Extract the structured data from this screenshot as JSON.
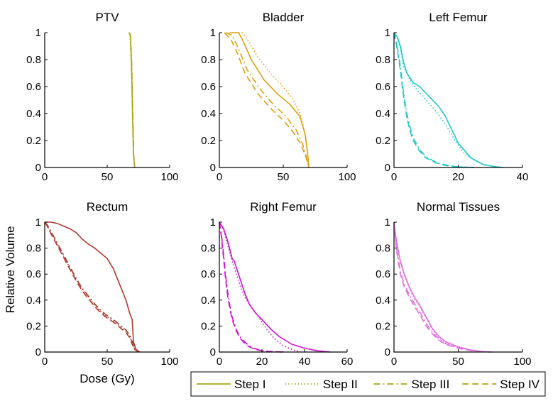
{
  "chart_data": [
    {
      "type": "line",
      "title": "PTV",
      "color": "#a8a818",
      "xlim": [
        0,
        100
      ],
      "ylim": [
        0,
        1
      ],
      "xticks": [
        0,
        50,
        100
      ],
      "yticks": [
        0,
        0.2,
        0.4,
        0.6,
        0.8,
        1
      ],
      "xtick_labels": [
        "0",
        "50",
        "100"
      ],
      "ytick_labels": [
        "0",
        "0.2",
        "0.4",
        "0.6",
        "0.8",
        "1"
      ],
      "series": [
        {
          "name": "Step I",
          "x": [
            67.5,
            68.5,
            69.5,
            70.3,
            71.0,
            72.0
          ],
          "y": [
            1,
            0.98,
            0.75,
            0.4,
            0.1,
            0
          ]
        },
        {
          "name": "Step II",
          "x": [
            67.3,
            68.3,
            69.3,
            70.2,
            70.9,
            71.8
          ],
          "y": [
            1,
            0.98,
            0.75,
            0.4,
            0.1,
            0
          ]
        },
        {
          "name": "Step III",
          "x": [
            67.8,
            68.7,
            69.7,
            70.5,
            71.2,
            72.1
          ],
          "y": [
            1,
            0.98,
            0.75,
            0.4,
            0.1,
            0
          ]
        },
        {
          "name": "Step IV",
          "x": [
            67.6,
            68.6,
            69.6,
            70.4,
            71.1,
            72.0
          ],
          "y": [
            1,
            0.98,
            0.75,
            0.4,
            0.1,
            0
          ]
        }
      ]
    },
    {
      "type": "line",
      "title": "Bladder",
      "color": "#e0a010",
      "xlim": [
        0,
        100
      ],
      "ylim": [
        0,
        1
      ],
      "xticks": [
        0,
        50,
        100
      ],
      "yticks": [
        0,
        0.2,
        0.4,
        0.6,
        0.8,
        1
      ],
      "xtick_labels": [
        "0",
        "50",
        "100"
      ],
      "ytick_labels": [
        "0",
        "0.2",
        "0.4",
        "0.6",
        "0.8",
        "1"
      ],
      "series": [
        {
          "name": "Step I",
          "x": [
            8,
            15,
            18,
            25,
            35,
            45,
            55,
            63,
            67,
            69,
            70
          ],
          "y": [
            1,
            1,
            0.95,
            0.8,
            0.65,
            0.55,
            0.47,
            0.38,
            0.25,
            0.12,
            0
          ]
        },
        {
          "name": "Step II",
          "x": [
            10,
            18,
            22,
            30,
            40,
            50,
            58,
            64,
            68,
            70
          ],
          "y": [
            1,
            1,
            0.95,
            0.82,
            0.7,
            0.6,
            0.5,
            0.38,
            0.2,
            0
          ]
        },
        {
          "name": "Step III",
          "x": [
            5,
            10,
            15,
            22,
            32,
            42,
            52,
            60,
            65,
            68,
            70
          ],
          "y": [
            1,
            0.98,
            0.88,
            0.72,
            0.58,
            0.47,
            0.38,
            0.28,
            0.18,
            0.08,
            0
          ]
        },
        {
          "name": "Step IV",
          "x": [
            4,
            9,
            14,
            20,
            30,
            40,
            50,
            58,
            64,
            68,
            70
          ],
          "y": [
            1,
            0.95,
            0.85,
            0.7,
            0.55,
            0.44,
            0.35,
            0.26,
            0.17,
            0.07,
            0
          ]
        }
      ]
    },
    {
      "type": "line",
      "title": "Left Femur",
      "color": "#20c8c8",
      "xlim": [
        0,
        40
      ],
      "ylim": [
        0,
        1
      ],
      "xticks": [
        0,
        20,
        40
      ],
      "yticks": [
        0,
        0.2,
        0.4,
        0.6,
        0.8,
        1
      ],
      "xtick_labels": [
        "0",
        "20",
        "40"
      ],
      "ytick_labels": [
        "0",
        "0.2",
        "0.4",
        "0.6",
        "0.8",
        "1"
      ],
      "series": [
        {
          "name": "Step I",
          "x": [
            0,
            1,
            2,
            3,
            4,
            6,
            8,
            10,
            12,
            14,
            16,
            18,
            20,
            24,
            28,
            32,
            34
          ],
          "y": [
            1,
            0.97,
            0.9,
            0.78,
            0.7,
            0.63,
            0.6,
            0.55,
            0.5,
            0.45,
            0.38,
            0.28,
            0.18,
            0.07,
            0.02,
            0.005,
            0
          ]
        },
        {
          "name": "Step II",
          "x": [
            0,
            1,
            2,
            3,
            5,
            7,
            10,
            13,
            16,
            19,
            22,
            26,
            30,
            33
          ],
          "y": [
            1,
            0.96,
            0.88,
            0.75,
            0.65,
            0.58,
            0.5,
            0.42,
            0.32,
            0.2,
            0.1,
            0.04,
            0.01,
            0
          ]
        },
        {
          "name": "Step III",
          "x": [
            0,
            1,
            2,
            3,
            4,
            5,
            6,
            8,
            10,
            13,
            16,
            20,
            25
          ],
          "y": [
            1,
            0.9,
            0.75,
            0.55,
            0.4,
            0.3,
            0.22,
            0.13,
            0.08,
            0.04,
            0.02,
            0.005,
            0
          ]
        },
        {
          "name": "Step IV",
          "x": [
            0,
            1,
            2,
            3,
            4,
            5,
            6,
            8,
            10,
            13,
            16,
            20,
            25
          ],
          "y": [
            1,
            0.88,
            0.72,
            0.52,
            0.37,
            0.27,
            0.2,
            0.12,
            0.07,
            0.035,
            0.015,
            0.004,
            0
          ]
        }
      ]
    },
    {
      "type": "line",
      "title": "Rectum",
      "color": "#b03a2e",
      "xlabel": "Dose (Gy)",
      "ylabel": "Relative Volume",
      "xlim": [
        0,
        100
      ],
      "ylim": [
        0,
        1
      ],
      "xticks": [
        0,
        50,
        100
      ],
      "yticks": [
        0,
        0.2,
        0.4,
        0.6,
        0.8,
        1
      ],
      "xtick_labels": [
        "0",
        "50",
        "100"
      ],
      "ytick_labels": [
        "0",
        "0.2",
        "0.4",
        "0.6",
        "0.8",
        "1"
      ],
      "series": [
        {
          "name": "Step I",
          "x": [
            0,
            5,
            10,
            15,
            20,
            25,
            30,
            35,
            40,
            45,
            50,
            55,
            60,
            65,
            68,
            70,
            71,
            73,
            76
          ],
          "y": [
            1,
            1,
            0.99,
            0.97,
            0.95,
            0.92,
            0.87,
            0.83,
            0.8,
            0.76,
            0.72,
            0.64,
            0.52,
            0.4,
            0.3,
            0.25,
            0.08,
            0.02,
            0
          ]
        },
        {
          "name": "Step II",
          "x": [
            0,
            2,
            5,
            10,
            15,
            20,
            25,
            30,
            35,
            40,
            45,
            50,
            55,
            60,
            65,
            68,
            70,
            72,
            75
          ],
          "y": [
            1,
            0.97,
            0.92,
            0.83,
            0.74,
            0.65,
            0.56,
            0.48,
            0.42,
            0.36,
            0.31,
            0.27,
            0.24,
            0.2,
            0.16,
            0.12,
            0.07,
            0.02,
            0
          ]
        },
        {
          "name": "Step III",
          "x": [
            0,
            2,
            5,
            10,
            15,
            20,
            25,
            30,
            35,
            40,
            45,
            50,
            55,
            60,
            65,
            68,
            70,
            72,
            75
          ],
          "y": [
            1,
            0.98,
            0.93,
            0.84,
            0.75,
            0.66,
            0.57,
            0.49,
            0.43,
            0.37,
            0.32,
            0.28,
            0.25,
            0.21,
            0.17,
            0.13,
            0.08,
            0.02,
            0
          ]
        },
        {
          "name": "Step IV",
          "x": [
            0,
            2,
            5,
            10,
            15,
            20,
            25,
            30,
            35,
            40,
            45,
            50,
            55,
            60,
            65,
            68,
            70,
            72,
            75
          ],
          "y": [
            1,
            0.97,
            0.91,
            0.82,
            0.73,
            0.64,
            0.55,
            0.47,
            0.41,
            0.35,
            0.3,
            0.26,
            0.23,
            0.19,
            0.15,
            0.11,
            0.06,
            0.02,
            0
          ]
        }
      ]
    },
    {
      "type": "line",
      "title": "Right Femur",
      "color": "#d010d0",
      "xlim": [
        0,
        60
      ],
      "ylim": [
        0,
        1
      ],
      "xticks": [
        0,
        20,
        40,
        60
      ],
      "yticks": [
        0,
        0.2,
        0.4,
        0.6,
        0.8,
        1
      ],
      "xtick_labels": [
        "0",
        "20",
        "40",
        "60"
      ],
      "ytick_labels": [
        "0",
        "0.2",
        "0.4",
        "0.6",
        "0.8",
        "1"
      ],
      "series": [
        {
          "name": "Step I",
          "x": [
            0,
            2,
            4,
            6,
            7,
            8,
            10,
            12,
            14,
            17,
            20,
            24,
            28,
            34,
            40,
            46,
            52
          ],
          "y": [
            1,
            0.95,
            0.85,
            0.72,
            0.7,
            0.65,
            0.55,
            0.45,
            0.37,
            0.3,
            0.25,
            0.18,
            0.12,
            0.06,
            0.03,
            0.01,
            0
          ]
        },
        {
          "name": "Step II",
          "x": [
            0,
            2,
            4,
            6,
            8,
            10,
            12,
            15,
            18,
            22,
            26,
            30,
            34,
            38
          ],
          "y": [
            1,
            0.94,
            0.82,
            0.7,
            0.6,
            0.5,
            0.42,
            0.35,
            0.28,
            0.18,
            0.1,
            0.05,
            0.02,
            0
          ]
        },
        {
          "name": "Step III",
          "x": [
            0,
            1,
            2,
            3,
            4,
            5,
            6,
            8,
            10,
            13,
            16,
            20,
            25,
            30
          ],
          "y": [
            1,
            0.9,
            0.75,
            0.58,
            0.45,
            0.35,
            0.27,
            0.17,
            0.11,
            0.06,
            0.03,
            0.01,
            0.003,
            0
          ]
        },
        {
          "name": "Step IV",
          "x": [
            0,
            1,
            2,
            3,
            4,
            5,
            6,
            8,
            10,
            13,
            16,
            20,
            25,
            30
          ],
          "y": [
            1,
            0.88,
            0.72,
            0.55,
            0.42,
            0.33,
            0.25,
            0.16,
            0.1,
            0.05,
            0.025,
            0.008,
            0.002,
            0
          ]
        }
      ]
    },
    {
      "type": "line",
      "title": "Normal Tissues",
      "color": "#e070e0",
      "xlim": [
        0,
        100
      ],
      "ylim": [
        0,
        1
      ],
      "xticks": [
        0,
        50,
        100
      ],
      "yticks": [
        0,
        0.2,
        0.4,
        0.6,
        0.8,
        1
      ],
      "xtick_labels": [
        "0",
        "50",
        "100"
      ],
      "ytick_labels": [
        "0",
        "0.2",
        "0.4",
        "0.6",
        "0.8",
        "1"
      ],
      "series": [
        {
          "name": "Step I",
          "x": [
            0,
            2,
            5,
            8,
            12,
            16,
            20,
            25,
            30,
            35,
            40,
            50,
            60,
            70,
            76
          ],
          "y": [
            1,
            0.85,
            0.7,
            0.6,
            0.5,
            0.42,
            0.36,
            0.27,
            0.18,
            0.12,
            0.08,
            0.04,
            0.015,
            0.003,
            0
          ]
        },
        {
          "name": "Step II",
          "x": [
            0,
            2,
            5,
            8,
            12,
            16,
            20,
            25,
            30,
            35,
            40,
            50,
            60,
            70,
            76
          ],
          "y": [
            1,
            0.84,
            0.69,
            0.59,
            0.49,
            0.41,
            0.35,
            0.26,
            0.17,
            0.11,
            0.07,
            0.035,
            0.013,
            0.003,
            0
          ]
        },
        {
          "name": "Step III",
          "x": [
            0,
            2,
            5,
            8,
            12,
            16,
            20,
            25,
            30,
            35,
            40,
            50,
            60,
            70,
            76
          ],
          "y": [
            1,
            0.8,
            0.62,
            0.52,
            0.44,
            0.37,
            0.31,
            0.22,
            0.15,
            0.1,
            0.065,
            0.03,
            0.012,
            0.003,
            0
          ]
        },
        {
          "name": "Step IV",
          "x": [
            0,
            2,
            5,
            8,
            12,
            16,
            20,
            25,
            30,
            35,
            40,
            50,
            60,
            70,
            76
          ],
          "y": [
            1,
            0.78,
            0.6,
            0.5,
            0.42,
            0.35,
            0.29,
            0.2,
            0.14,
            0.09,
            0.06,
            0.028,
            0.011,
            0.002,
            0
          ]
        }
      ]
    }
  ],
  "legend": {
    "entries": [
      {
        "label": "Step I",
        "style": "solid"
      },
      {
        "label": "Step II",
        "style": "dotted"
      },
      {
        "label": "Step III",
        "style": "dashdot"
      },
      {
        "label": "Step IV",
        "style": "dashed"
      }
    ],
    "line_color": "#a8a818"
  }
}
